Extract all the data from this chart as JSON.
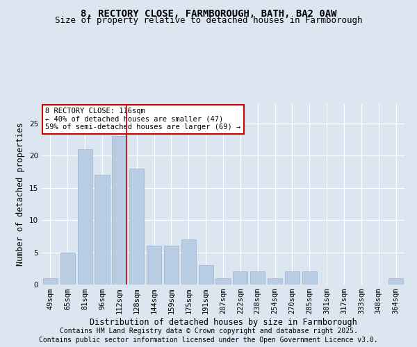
{
  "title_line1": "8, RECTORY CLOSE, FARMBOROUGH, BATH, BA2 0AW",
  "title_line2": "Size of property relative to detached houses in Farmborough",
  "xlabel": "Distribution of detached houses by size in Farmborough",
  "ylabel": "Number of detached properties",
  "categories": [
    "49sqm",
    "65sqm",
    "81sqm",
    "96sqm",
    "112sqm",
    "128sqm",
    "144sqm",
    "159sqm",
    "175sqm",
    "191sqm",
    "207sqm",
    "222sqm",
    "238sqm",
    "254sqm",
    "270sqm",
    "285sqm",
    "301sqm",
    "317sqm",
    "333sqm",
    "348sqm",
    "364sqm"
  ],
  "values": [
    1,
    5,
    21,
    17,
    23,
    18,
    6,
    6,
    7,
    3,
    1,
    2,
    2,
    1,
    2,
    2,
    0,
    0,
    0,
    0,
    1
  ],
  "bar_color": "#b8cce4",
  "bar_edgecolor": "#9ab4d0",
  "background_color": "#dce6f1",
  "plot_background": "#dce6f1",
  "grid_color": "#ffffff",
  "vline_index": 4,
  "vline_color": "#cc0000",
  "annotation_text": "8 RECTORY CLOSE: 116sqm\n← 40% of detached houses are smaller (47)\n59% of semi-detached houses are larger (69) →",
  "annotation_box_facecolor": "#ffffff",
  "annotation_box_edgecolor": "#cc0000",
  "ylim": [
    0,
    28
  ],
  "yticks": [
    0,
    5,
    10,
    15,
    20,
    25
  ],
  "footnote1": "Contains HM Land Registry data © Crown copyright and database right 2025.",
  "footnote2": "Contains public sector information licensed under the Open Government Licence v3.0.",
  "title_fontsize": 10,
  "subtitle_fontsize": 9,
  "axis_label_fontsize": 8.5,
  "tick_fontsize": 7.5,
  "annotation_fontsize": 7.5,
  "footnote_fontsize": 7
}
